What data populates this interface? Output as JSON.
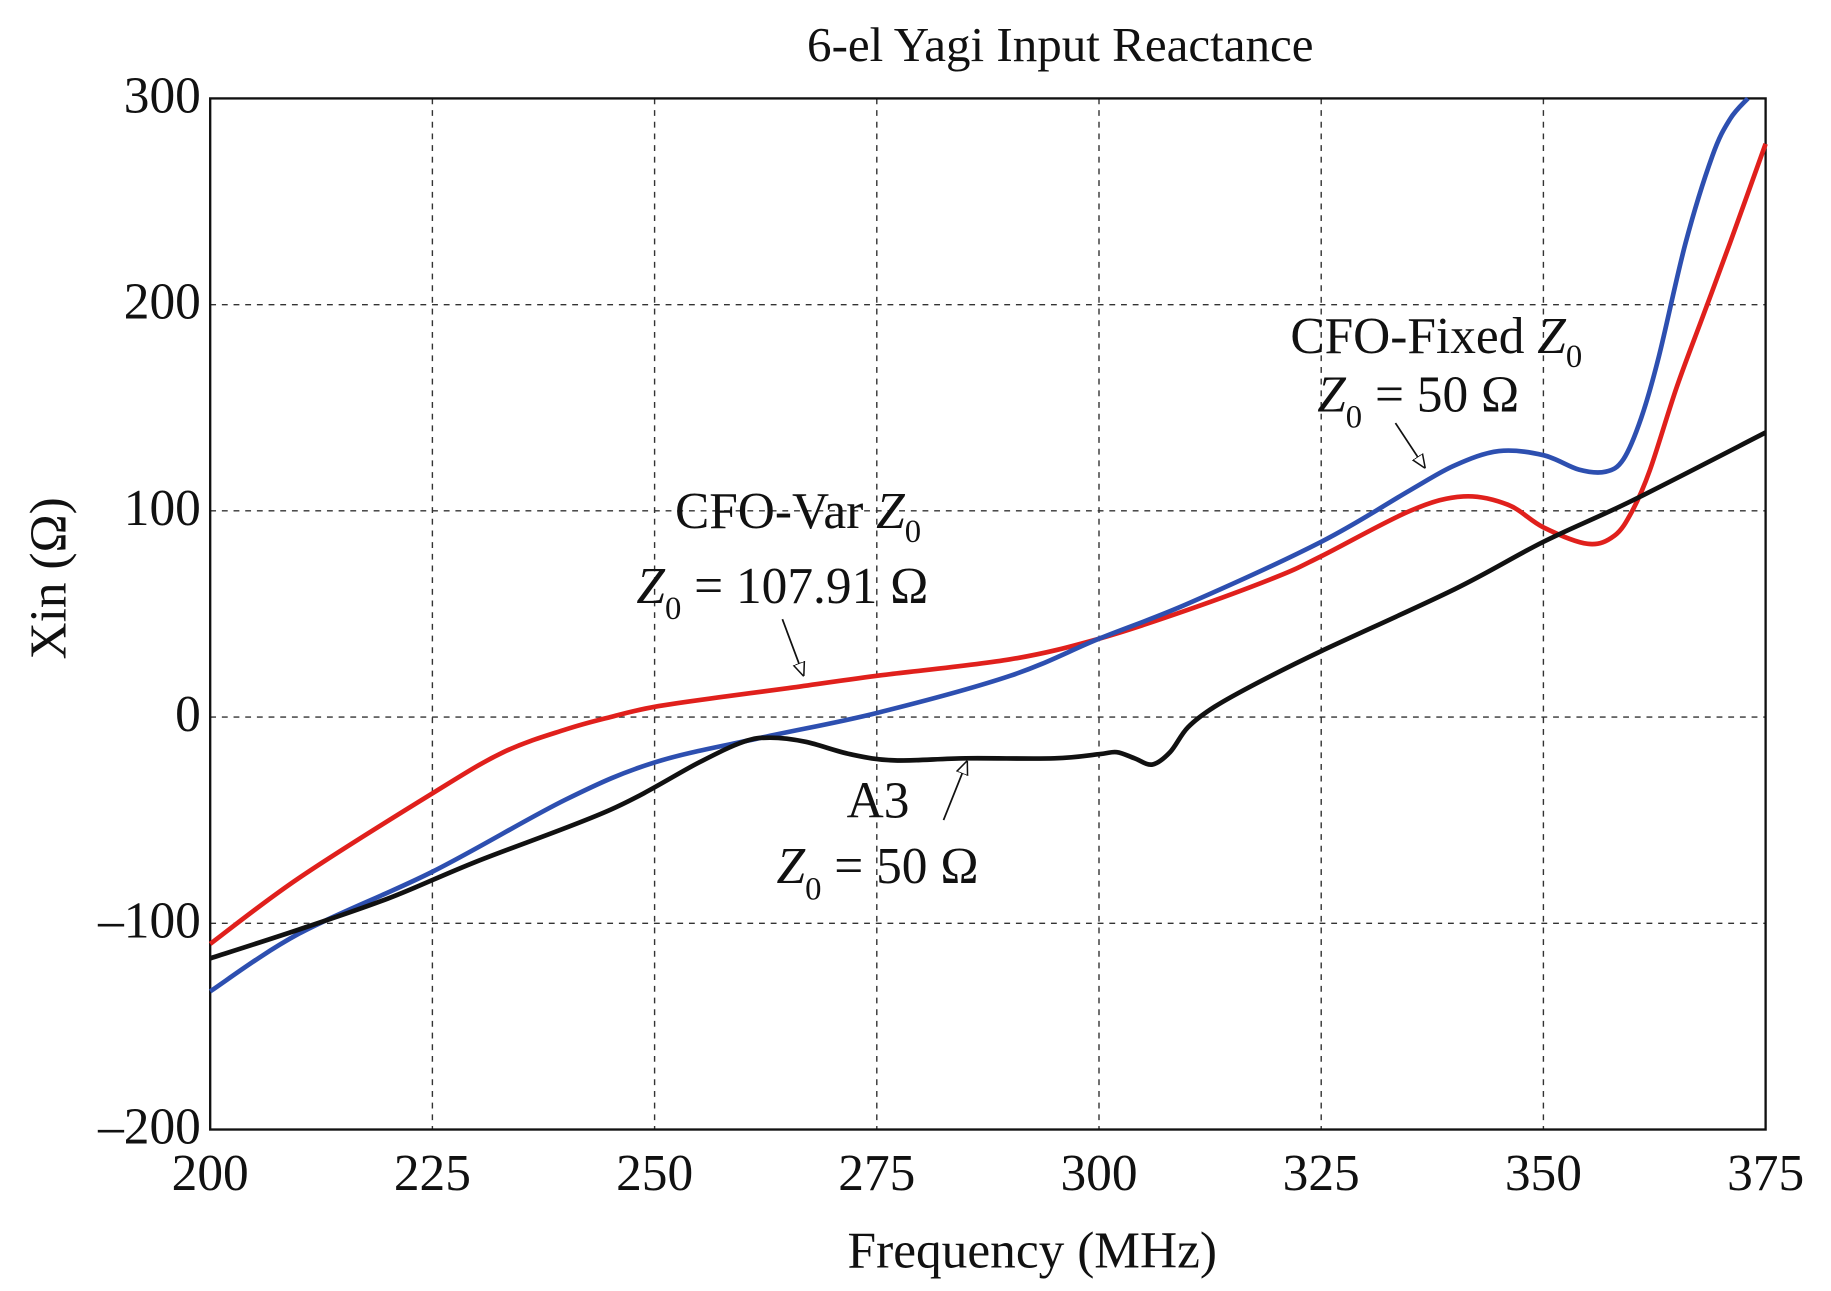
{
  "chart_data": {
    "type": "line",
    "title": "6-el Yagi Input Reactance",
    "xlabel": "Frequency (MHz)",
    "ylabel": "Xin (Ω)",
    "xlim": [
      200,
      375
    ],
    "ylim": [
      -200,
      300
    ],
    "xticks": [
      200,
      225,
      250,
      275,
      300,
      325,
      350,
      375
    ],
    "xtick_labels": [
      "200",
      "225",
      "250",
      "275",
      "300",
      "325",
      "350",
      "375"
    ],
    "yticks": [
      300,
      200,
      100,
      0,
      -100,
      -200
    ],
    "ytick_labels": [
      "300",
      "200",
      "100",
      "0",
      "–100",
      "–200"
    ],
    "grid": true,
    "legend": "none (inline annotations)",
    "series": [
      {
        "key": "cfo-var",
        "color": "#e0201c",
        "x": [
          200,
          210,
          225,
          233,
          240,
          245,
          250,
          258,
          265,
          275,
          290,
          300,
          310,
          320,
          325,
          335,
          341,
          346,
          350,
          355,
          358,
          360,
          362,
          365,
          368,
          371,
          375
        ],
        "y": [
          -110,
          -78,
          -37,
          -17,
          -6,
          0,
          5,
          10,
          14,
          20,
          28,
          38,
          52,
          68,
          78,
          100,
          107,
          103,
          92,
          84,
          88,
          100,
          120,
          160,
          195,
          230,
          278
        ]
      },
      {
        "key": "cfo-fixed",
        "color": "#2d4fb0",
        "x": [
          200,
          210,
          225,
          240,
          250,
          262,
          275,
          290,
          300,
          310,
          325,
          335,
          340,
          345,
          350,
          354,
          357,
          359,
          361,
          363,
          366,
          369,
          371,
          373
        ],
        "y": [
          -133,
          -105,
          -75,
          -40,
          -22,
          -10,
          2,
          20,
          38,
          55,
          85,
          110,
          122,
          129,
          127,
          120,
          119,
          125,
          145,
          175,
          230,
          272,
          290,
          300
        ]
      },
      {
        "key": "a3",
        "color": "#111111",
        "x": [
          200,
          210,
          220,
          230,
          245,
          255,
          260,
          263,
          267,
          272,
          277,
          285,
          295,
          300,
          302,
          304,
          306,
          308,
          310,
          313,
          318,
          325,
          340,
          350,
          360,
          375
        ],
        "y": [
          -117,
          -103,
          -88,
          -70,
          -45,
          -22,
          -12,
          -10,
          -12,
          -18,
          -21,
          -20,
          -20,
          -18,
          -17,
          -20,
          -23,
          -17,
          -5,
          5,
          17,
          32,
          62,
          85,
          105,
          138
        ]
      }
    ]
  },
  "annotations": {
    "cfo_var": {
      "name_pre": "CFO-Var ",
      "z": "Z",
      "sub": "0",
      "value_rest": " = 107.91 Ω"
    },
    "cfo_fixed": {
      "name_pre": "CFO-Fixed ",
      "z": "Z",
      "sub": "0",
      "value_rest": " = 50 Ω"
    },
    "a3": {
      "name": "A3",
      "z": "Z",
      "sub": "0",
      "value_rest": " = 50  Ω"
    }
  }
}
